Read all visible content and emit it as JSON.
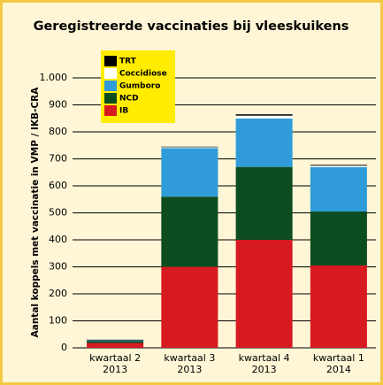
{
  "chart_data": {
    "type": "stacked_bar",
    "title": "Geregistreerde vaccinaties bij vleeskuikens",
    "y_label": "Aantal koppels met vaccinatie in VMP / IKB-CRA",
    "categories": [
      [
        "kwartaal 2",
        "2013"
      ],
      [
        "kwartaal 3",
        "2013"
      ],
      [
        "kwartaal 4",
        "2013"
      ],
      [
        "kwartaal 1",
        "2014"
      ]
    ],
    "series": [
      {
        "name": "IB",
        "color": "#d71920",
        "values": [
          18,
          300,
          400,
          305
        ]
      },
      {
        "name": "NCD",
        "color": "#0b4d1e",
        "values": [
          7,
          260,
          270,
          200
        ]
      },
      {
        "name": "Gumboro",
        "color": "#2f9bd8",
        "values": [
          3,
          180,
          180,
          165
        ]
      },
      {
        "name": "Coccidiose",
        "color": "#ffffff",
        "values": [
          0,
          3,
          10,
          5
        ]
      },
      {
        "name": "TRT",
        "color": "#000000",
        "values": [
          2,
          2,
          5,
          3
        ]
      }
    ],
    "ylim": [
      0,
      1000
    ],
    "yticks": [
      0,
      100,
      200,
      300,
      400,
      500,
      600,
      700,
      800,
      900,
      {
        "value": 1000,
        "label": "1.000"
      }
    ],
    "grid": true
  }
}
